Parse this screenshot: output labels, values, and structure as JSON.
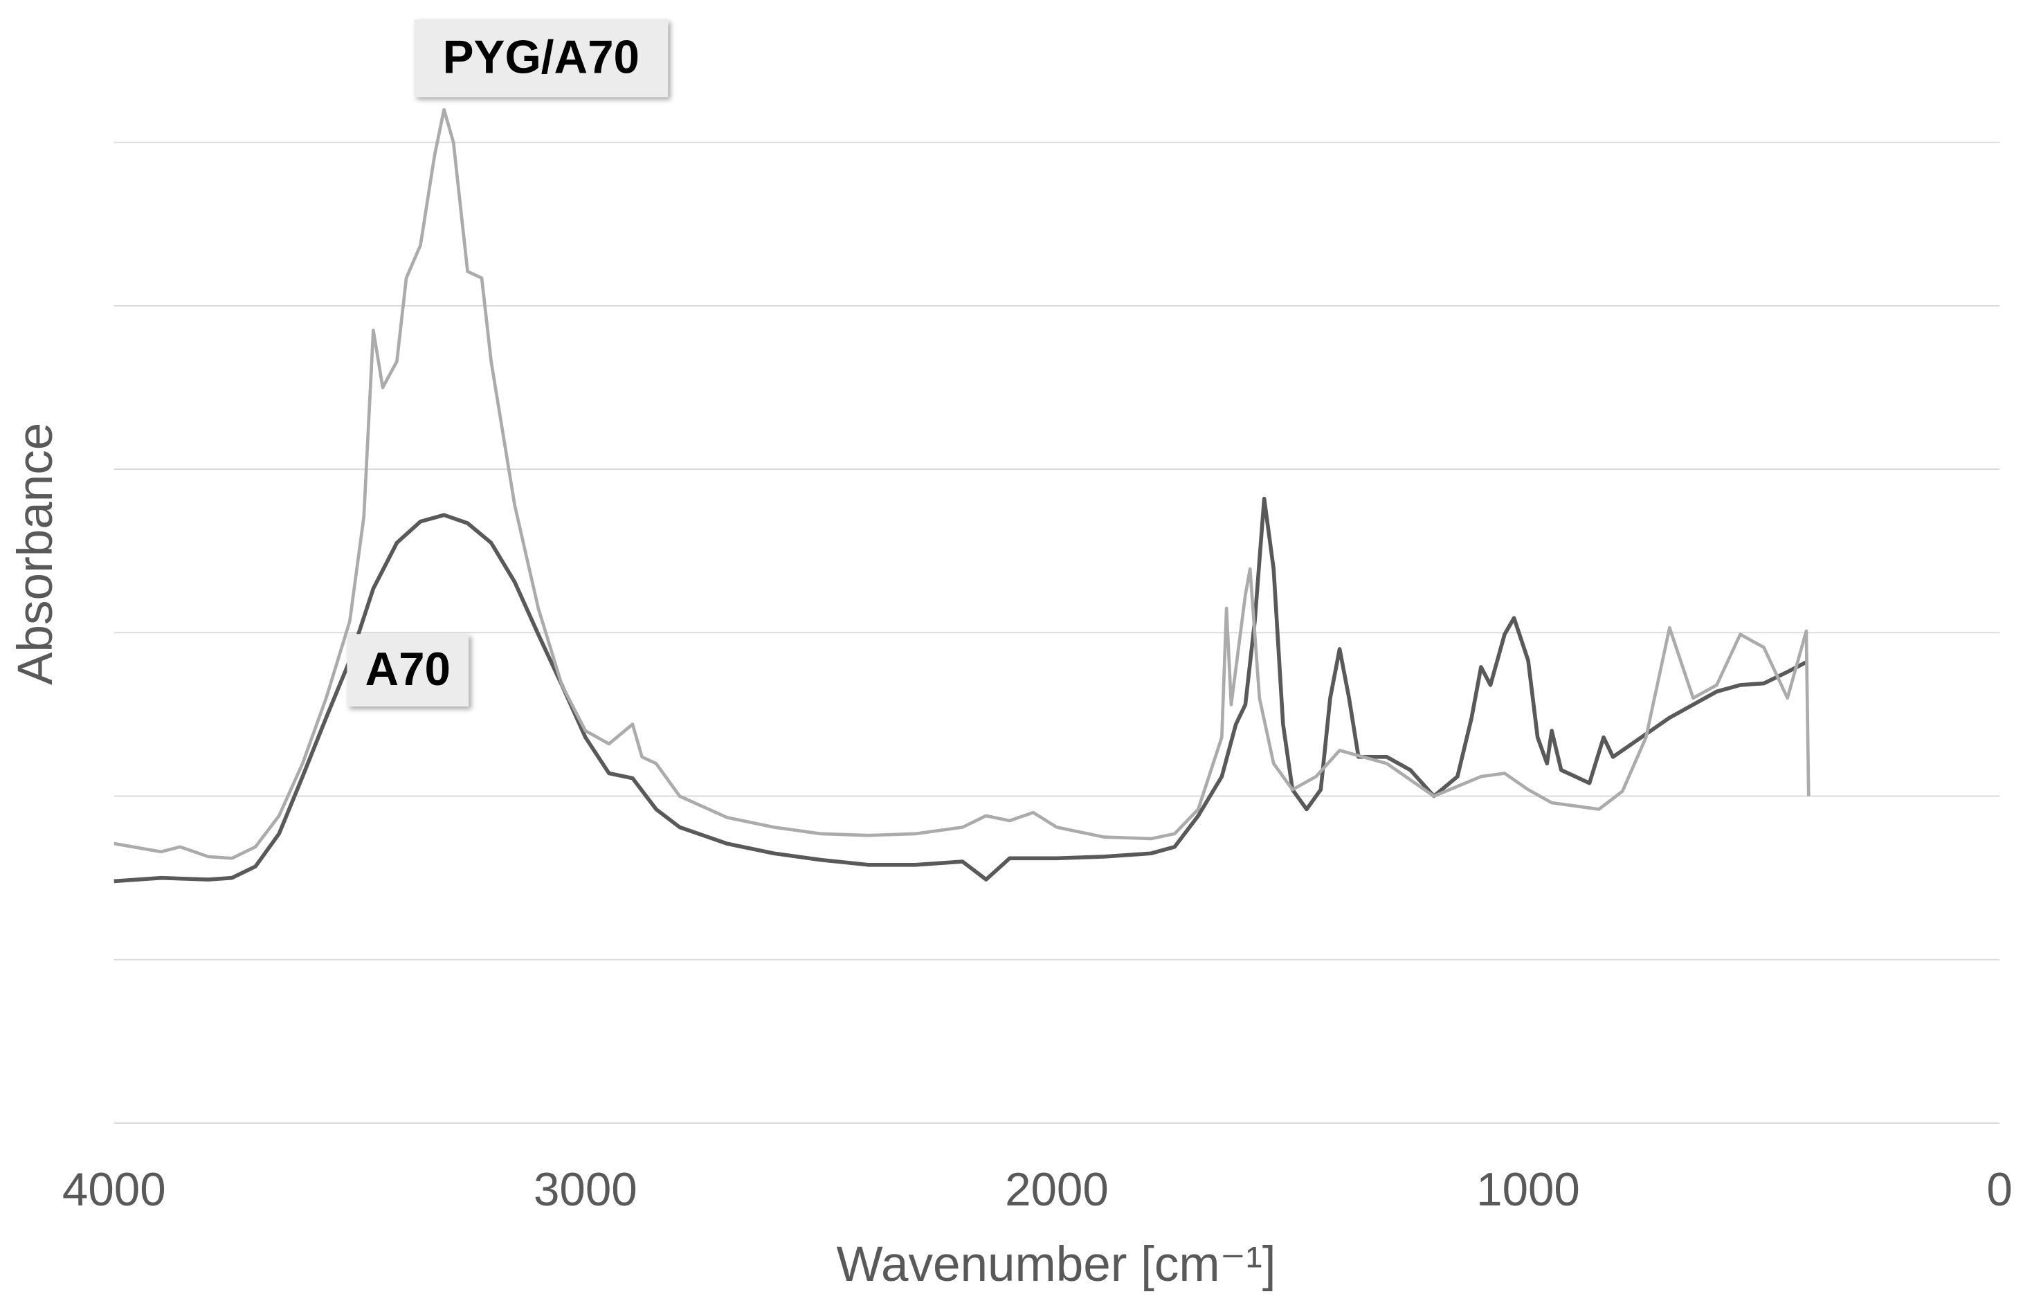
{
  "chart_data": {
    "type": "line",
    "x_label": "Wavenumber [cm⁻¹]",
    "y_label": "Absorbance",
    "xlim": [
      4000,
      0
    ],
    "xticks": [
      4000,
      3000,
      2000,
      1000,
      0
    ],
    "ylim": [
      0,
      6
    ],
    "yticks": [
      0,
      1,
      2,
      3,
      4,
      5,
      6
    ],
    "ytick_labels": false,
    "grid": true,
    "series": [
      {
        "name": "A70",
        "color": "#595959",
        "x": [
          4000,
          3900,
          3800,
          3750,
          3700,
          3650,
          3600,
          3550,
          3500,
          3450,
          3400,
          3350,
          3300,
          3250,
          3200,
          3150,
          3100,
          3050,
          3000,
          2950,
          2900,
          2850,
          2800,
          2700,
          2600,
          2500,
          2400,
          2300,
          2200,
          2150,
          2100,
          2000,
          1900,
          1800,
          1750,
          1700,
          1650,
          1620,
          1600,
          1580,
          1560,
          1540,
          1520,
          1500,
          1470,
          1440,
          1420,
          1400,
          1380,
          1360,
          1300,
          1250,
          1200,
          1150,
          1120,
          1100,
          1080,
          1050,
          1030,
          1000,
          980,
          960,
          950,
          930,
          900,
          870,
          840,
          820,
          800,
          750,
          700,
          650,
          600,
          550,
          500,
          450,
          410
        ],
        "values": [
          1.48,
          1.5,
          1.49,
          1.5,
          1.57,
          1.77,
          2.12,
          2.48,
          2.83,
          3.27,
          3.55,
          3.68,
          3.72,
          3.67,
          3.55,
          3.31,
          2.99,
          2.68,
          2.36,
          2.14,
          2.11,
          1.92,
          1.81,
          1.71,
          1.65,
          1.61,
          1.58,
          1.58,
          1.6,
          1.49,
          1.62,
          1.62,
          1.63,
          1.65,
          1.69,
          1.88,
          2.12,
          2.44,
          2.56,
          3.07,
          3.82,
          3.39,
          2.44,
          2.04,
          1.92,
          2.04,
          2.6,
          2.9,
          2.6,
          2.24,
          2.24,
          2.16,
          2.0,
          2.12,
          2.48,
          2.79,
          2.68,
          2.99,
          3.09,
          2.83,
          2.36,
          2.2,
          2.4,
          2.16,
          2.12,
          2.08,
          2.36,
          2.24,
          2.28,
          2.38,
          2.48,
          2.56,
          2.64,
          2.68,
          2.69,
          2.76,
          2.82
        ]
      },
      {
        "name": "PYG/A70",
        "color": "#ababab",
        "x": [
          4000,
          3900,
          3860,
          3800,
          3750,
          3700,
          3650,
          3600,
          3550,
          3500,
          3470,
          3450,
          3430,
          3400,
          3380,
          3350,
          3320,
          3300,
          3280,
          3250,
          3220,
          3200,
          3150,
          3100,
          3050,
          3000,
          2950,
          2900,
          2880,
          2850,
          2800,
          2700,
          2600,
          2500,
          2400,
          2300,
          2200,
          2150,
          2100,
          2050,
          2000,
          1900,
          1800,
          1750,
          1700,
          1650,
          1640,
          1630,
          1600,
          1590,
          1570,
          1540,
          1500,
          1450,
          1400,
          1300,
          1200,
          1100,
          1050,
          1000,
          950,
          850,
          800,
          750,
          700,
          650,
          600,
          550,
          500,
          450,
          410,
          405
        ],
        "values": [
          1.71,
          1.66,
          1.69,
          1.63,
          1.62,
          1.69,
          1.88,
          2.2,
          2.6,
          3.07,
          3.71,
          4.85,
          4.5,
          4.66,
          5.17,
          5.37,
          5.92,
          6.2,
          6.0,
          5.21,
          5.17,
          4.66,
          3.78,
          3.15,
          2.68,
          2.4,
          2.32,
          2.44,
          2.24,
          2.2,
          2.0,
          1.87,
          1.81,
          1.77,
          1.76,
          1.77,
          1.81,
          1.88,
          1.85,
          1.9,
          1.81,
          1.75,
          1.74,
          1.77,
          1.92,
          2.36,
          3.15,
          2.56,
          3.23,
          3.39,
          2.6,
          2.2,
          2.04,
          2.12,
          2.28,
          2.2,
          2.0,
          2.12,
          2.14,
          2.04,
          1.96,
          1.92,
          2.03,
          2.36,
          3.03,
          2.6,
          2.68,
          2.99,
          2.91,
          2.6,
          3.01,
          2.0
        ]
      }
    ],
    "annotations": [
      {
        "text": "PYG/A70"
      },
      {
        "text": "A70"
      }
    ]
  }
}
